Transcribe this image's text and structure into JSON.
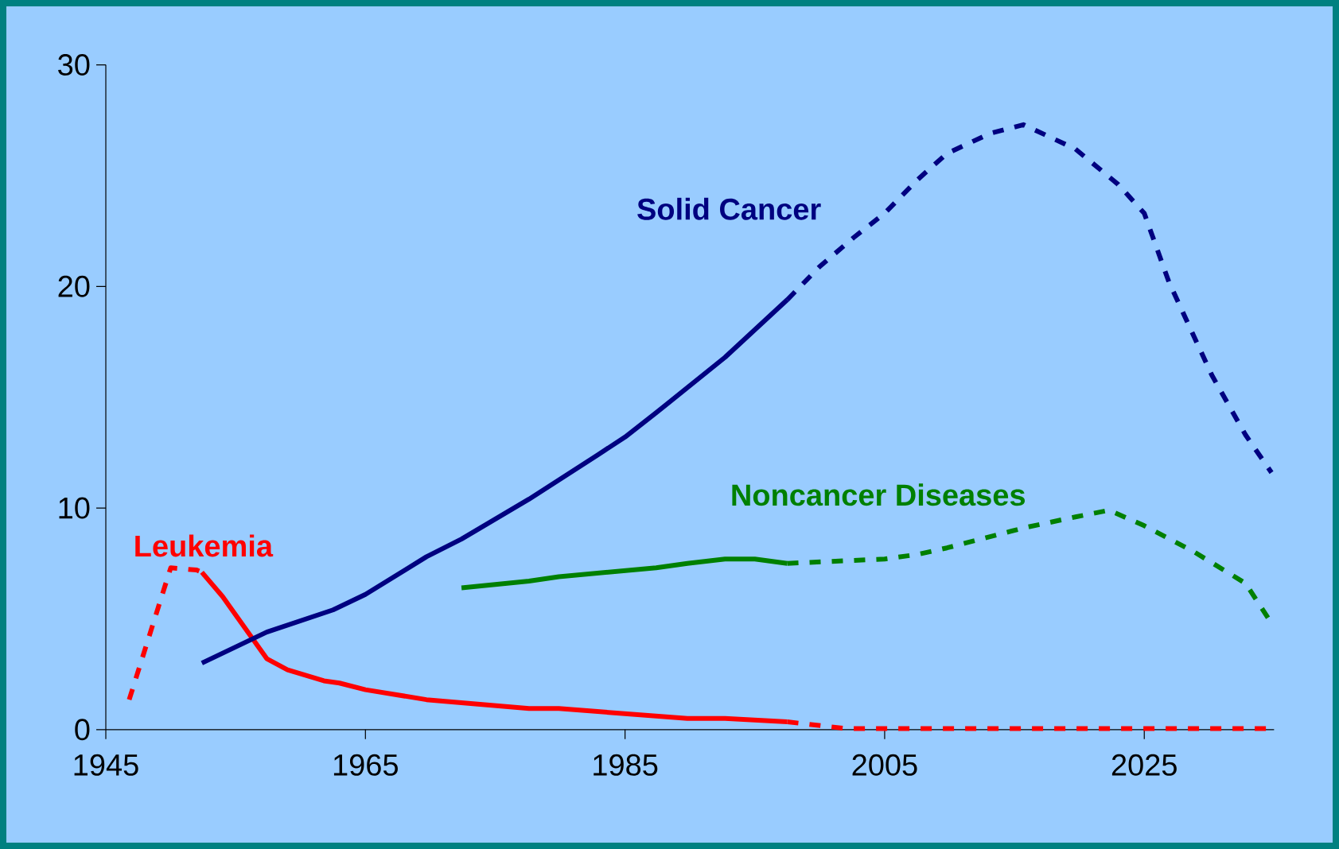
{
  "chart_data": {
    "type": "line",
    "xlim": [
      1945,
      2035
    ],
    "ylim": [
      0,
      30
    ],
    "xticks": [
      1945,
      1965,
      1985,
      2005,
      2025
    ],
    "yticks": [
      0,
      10,
      20,
      30
    ],
    "marker": "none",
    "series": [
      {
        "name": "Leukemia",
        "color": "#ff0000",
        "line_style": "solid",
        "x": [
          1952.4,
          1954,
          1957.4,
          1959,
          1961.8,
          1963,
          1965,
          1969.7,
          1977.6,
          1979.9,
          1989.8,
          1992.7,
          1997.5
        ],
        "values": [
          7.1,
          6.0,
          3.2,
          2.7,
          2.2,
          2.1,
          1.8,
          1.35,
          0.95,
          0.95,
          0.5,
          0.5,
          0.35
        ]
      },
      {
        "color": "#ff0000",
        "line_style": "dashed",
        "x": [
          1946.8,
          1949.3,
          1950,
          1952,
          1952.4
        ],
        "values": [
          1.35,
          6.0,
          7.3,
          7.2,
          7.1
        ]
      },
      {
        "color": "#ff0000",
        "line_style": "dashed",
        "x": [
          1997.5,
          2002,
          2010,
          2020,
          2035
        ],
        "values": [
          0.35,
          0.05,
          0.05,
          0.05,
          0.05
        ]
      },
      {
        "name": "Solid Cancer",
        "color": "#000080",
        "line_style": "solid",
        "x": [
          1952.4,
          1957.4,
          1962.5,
          1965,
          1969.7,
          1972.4,
          1977.6,
          1982.9,
          1985,
          1987.4,
          1992.7,
          1997.5
        ],
        "values": [
          3.0,
          4.4,
          5.4,
          6.1,
          7.8,
          8.6,
          10.4,
          12.4,
          13.2,
          14.3,
          16.8,
          19.4
        ]
      },
      {
        "color": "#000080",
        "line_style": "dashed",
        "x": [
          1997.5,
          2000,
          2002.6,
          2005,
          2007.5,
          2009.8,
          2013.1,
          2015.7,
          2019.7,
          2023,
          2025,
          2026.9,
          2030.2,
          2032.8,
          2034.8
        ],
        "values": [
          19.4,
          20.9,
          22.2,
          23.3,
          24.8,
          26.0,
          26.9,
          27.3,
          26.2,
          24.6,
          23.3,
          20.2,
          16.0,
          13.3,
          11.6
        ]
      },
      {
        "name": "Noncancer Diseases",
        "color": "#008000",
        "line_style": "solid",
        "x": [
          1972.4,
          1977.6,
          1979.9,
          1987.4,
          1989.8,
          1992.7,
          1995,
          1997.5
        ],
        "values": [
          6.4,
          6.7,
          6.9,
          7.3,
          7.5,
          7.7,
          7.7,
          7.5
        ]
      },
      {
        "color": "#008000",
        "line_style": "dashed",
        "x": [
          1997.5,
          2005,
          2007.5,
          2009.8,
          2015.7,
          2019.7,
          2022.3,
          2025,
          2028.9,
          2032.8,
          2034.8
        ],
        "values": [
          7.5,
          7.7,
          7.9,
          8.2,
          9.1,
          9.6,
          9.9,
          9.2,
          8.0,
          6.6,
          4.8
        ]
      }
    ]
  }
}
